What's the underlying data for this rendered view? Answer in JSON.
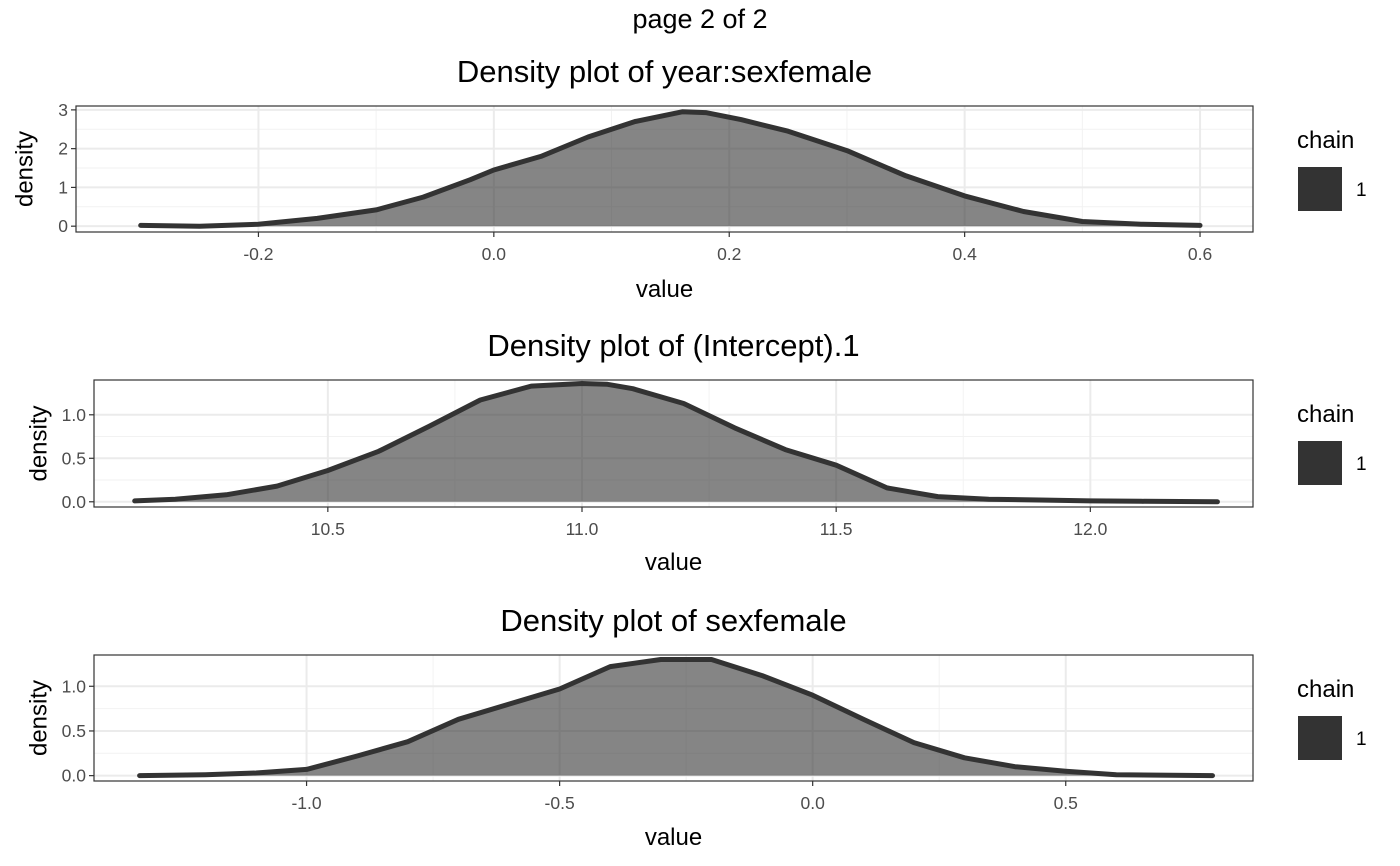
{
  "page_title": "page 2 of 2",
  "chart_data": [
    {
      "type": "area",
      "title": "Density plot of  year:sexfemale",
      "xlabel": "value",
      "ylabel": "density",
      "xlim": [
        -0.355,
        0.645
      ],
      "ylim": [
        -0.15,
        3.1
      ],
      "xticks": [
        -0.2,
        0.0,
        0.2,
        0.4,
        0.6
      ],
      "xtick_labels": [
        "-0.2",
        "0.0",
        "0.2",
        "0.4",
        "0.6"
      ],
      "yticks": [
        0,
        1,
        2,
        3
      ],
      "ytick_labels": [
        "0",
        "1",
        "2",
        "3"
      ],
      "grid": true,
      "legend": {
        "title": "chain",
        "entries": [
          "1"
        ],
        "placement": "right"
      },
      "series": [
        {
          "x": [
            -0.3,
            -0.25,
            -0.2,
            -0.15,
            -0.1,
            -0.06,
            -0.02,
            0.0,
            0.04,
            0.08,
            0.12,
            0.16,
            0.18,
            0.21,
            0.25,
            0.3,
            0.35,
            0.4,
            0.45,
            0.5,
            0.55,
            0.6
          ],
          "y": [
            0.02,
            0.0,
            0.05,
            0.2,
            0.42,
            0.75,
            1.2,
            1.45,
            1.8,
            2.3,
            2.7,
            2.95,
            2.93,
            2.75,
            2.45,
            1.95,
            1.3,
            0.78,
            0.38,
            0.12,
            0.05,
            0.02
          ]
        }
      ]
    },
    {
      "type": "area",
      "title": "Density plot of  (Intercept).1",
      "xlabel": "value",
      "ylabel": "density",
      "xlim": [
        10.04,
        12.32
      ],
      "ylim": [
        -0.06,
        1.4
      ],
      "xticks": [
        10.5,
        11.0,
        11.5,
        12.0
      ],
      "xtick_labels": [
        "10.5",
        "11.0",
        "11.5",
        "12.0"
      ],
      "yticks": [
        0.0,
        0.5,
        1.0
      ],
      "ytick_labels": [
        "0.0",
        "0.5",
        "1.0"
      ],
      "grid": true,
      "legend": {
        "title": "chain",
        "entries": [
          "1"
        ],
        "placement": "right"
      },
      "series": [
        {
          "x": [
            10.12,
            10.2,
            10.3,
            10.4,
            10.5,
            10.6,
            10.7,
            10.8,
            10.9,
            11.0,
            11.05,
            11.1,
            11.2,
            11.3,
            11.4,
            11.5,
            11.6,
            11.7,
            11.8,
            11.9,
            12.0,
            12.1,
            12.25
          ],
          "y": [
            0.01,
            0.03,
            0.08,
            0.18,
            0.36,
            0.58,
            0.87,
            1.17,
            1.33,
            1.36,
            1.35,
            1.3,
            1.13,
            0.85,
            0.6,
            0.42,
            0.16,
            0.06,
            0.03,
            0.02,
            0.01,
            0.005,
            0.0
          ]
        }
      ]
    },
    {
      "type": "area",
      "title": "Density plot of  sexfemale",
      "xlabel": "value",
      "ylabel": "density",
      "xlim": [
        -1.42,
        0.87
      ],
      "ylim": [
        -0.06,
        1.35
      ],
      "xticks": [
        -1.0,
        -0.5,
        0.0,
        0.5
      ],
      "xtick_labels": [
        "-1.0",
        "-0.5",
        "0.0",
        "0.5"
      ],
      "yticks": [
        0.0,
        0.5,
        1.0
      ],
      "ytick_labels": [
        "0.0",
        "0.5",
        "1.0"
      ],
      "grid": true,
      "legend": {
        "title": "chain",
        "entries": [
          "1"
        ],
        "placement": "right"
      },
      "series": [
        {
          "x": [
            -1.33,
            -1.2,
            -1.1,
            -1.0,
            -0.9,
            -0.8,
            -0.7,
            -0.6,
            -0.5,
            -0.4,
            -0.3,
            -0.2,
            -0.1,
            0.0,
            0.1,
            0.2,
            0.3,
            0.4,
            0.5,
            0.6,
            0.79
          ],
          "y": [
            0.0,
            0.01,
            0.03,
            0.07,
            0.22,
            0.38,
            0.63,
            0.8,
            0.97,
            1.22,
            1.3,
            1.3,
            1.12,
            0.9,
            0.63,
            0.37,
            0.2,
            0.1,
            0.05,
            0.01,
            0.0
          ]
        }
      ]
    }
  ]
}
